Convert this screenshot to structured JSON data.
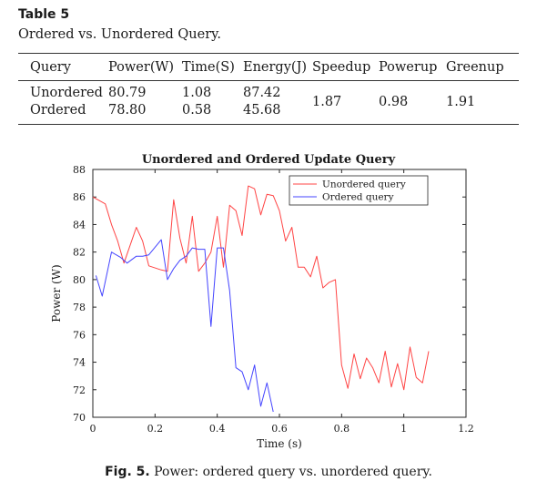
{
  "table": {
    "label": "Table 5",
    "caption": "Ordered vs. Unordered Query.",
    "headers": [
      "Query",
      "Power(W)",
      "Time(S)",
      "Energy(J)",
      "Speedup",
      "Powerup",
      "Greenup"
    ],
    "rows": [
      {
        "query": "Unordered",
        "power": "80.79",
        "time": "1.08",
        "energy": "87.42"
      },
      {
        "query": "Ordered",
        "power": "78.80",
        "time": "0.58",
        "energy": "45.68"
      }
    ],
    "speedup": "1.87",
    "powerup": "0.98",
    "greenup": "1.91"
  },
  "figure": {
    "label": "Fig. 5.",
    "caption": "Power: ordered query vs. unordered query."
  },
  "chart_data": {
    "type": "line",
    "title": "Unordered and Ordered Update Query",
    "xlabel": "Time (s)",
    "ylabel": "Power (W)",
    "xlim": [
      0,
      1.2
    ],
    "ylim": [
      70,
      88
    ],
    "xticks": [
      0,
      0.2,
      0.4,
      0.6,
      0.8,
      1,
      1.2
    ],
    "yticks": [
      70,
      72,
      74,
      76,
      78,
      80,
      82,
      84,
      86,
      88
    ],
    "grid": false,
    "legend": "top-right",
    "series": [
      {
        "name": "Unordered query",
        "color": "#ff4444",
        "x": [
          0.0,
          0.04,
          0.06,
          0.08,
          0.1,
          0.14,
          0.16,
          0.18,
          0.22,
          0.24,
          0.26,
          0.28,
          0.3,
          0.32,
          0.34,
          0.36,
          0.38,
          0.4,
          0.42,
          0.44,
          0.46,
          0.48,
          0.5,
          0.52,
          0.54,
          0.56,
          0.58,
          0.6,
          0.62,
          0.64,
          0.66,
          0.68,
          0.7,
          0.72,
          0.74,
          0.76,
          0.78,
          0.8,
          0.82,
          0.84,
          0.86,
          0.88,
          0.9,
          0.92,
          0.94,
          0.96,
          0.98,
          1.0,
          1.02,
          1.04,
          1.06,
          1.08
        ],
        "y": [
          86.0,
          85.5,
          84.0,
          82.8,
          81.2,
          83.8,
          82.8,
          81.0,
          80.7,
          80.6,
          85.8,
          83.0,
          81.2,
          84.6,
          80.6,
          81.2,
          82.0,
          84.6,
          80.9,
          85.4,
          85.0,
          83.2,
          86.8,
          86.6,
          84.7,
          86.2,
          86.1,
          85.0,
          82.8,
          83.8,
          80.9,
          80.9,
          80.2,
          81.7,
          79.4,
          79.8,
          80.0,
          73.8,
          72.1,
          74.6,
          72.8,
          74.3,
          73.6,
          72.5,
          74.8,
          72.2,
          73.9,
          72.0,
          75.1,
          72.9,
          72.5,
          74.8
        ]
      },
      {
        "name": "Ordered query",
        "color": "#4444ff",
        "x": [
          0.01,
          0.03,
          0.06,
          0.09,
          0.11,
          0.14,
          0.16,
          0.18,
          0.22,
          0.24,
          0.26,
          0.28,
          0.3,
          0.32,
          0.34,
          0.36,
          0.38,
          0.4,
          0.42,
          0.44,
          0.46,
          0.48,
          0.5,
          0.52,
          0.54,
          0.56,
          0.58
        ],
        "y": [
          80.3,
          78.8,
          82.0,
          81.6,
          81.2,
          81.7,
          81.7,
          81.8,
          82.9,
          80.0,
          80.8,
          81.4,
          81.7,
          82.3,
          82.2,
          82.2,
          76.6,
          82.3,
          82.3,
          79.2,
          73.6,
          73.3,
          72.0,
          73.8,
          70.8,
          72.5,
          70.4
        ]
      }
    ]
  }
}
